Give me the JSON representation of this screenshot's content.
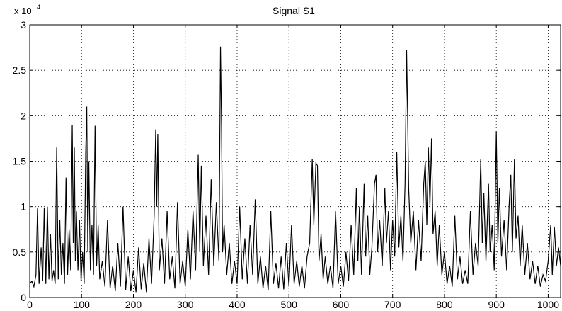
{
  "chart_data": {
    "type": "line",
    "title": "Signal S1",
    "xlabel": "",
    "ylabel": "",
    "y_multiplier_label": "x 10",
    "y_multiplier_exponent": "4",
    "xlim": [
      0,
      1024
    ],
    "ylim": [
      0,
      30000
    ],
    "xticks": [
      0,
      100,
      200,
      300,
      400,
      500,
      600,
      700,
      800,
      900,
      1000
    ],
    "xtick_labels": [
      "0",
      "100",
      "200",
      "300",
      "400",
      "500",
      "600",
      "700",
      "800",
      "900",
      "1000"
    ],
    "yticks": [
      0,
      5000,
      10000,
      15000,
      20000,
      25000,
      30000
    ],
    "ytick_labels": [
      "0",
      "0.5",
      "1",
      "1.5",
      "2",
      "2.5",
      "3"
    ],
    "grid": true,
    "line_color": "#000000",
    "series": [
      {
        "name": "",
        "points": [
          [
            0,
            1500
          ],
          [
            4,
            1800
          ],
          [
            8,
            1200
          ],
          [
            12,
            2500
          ],
          [
            15,
            9800
          ],
          [
            18,
            1500
          ],
          [
            22,
            5500
          ],
          [
            25,
            1800
          ],
          [
            28,
            9900
          ],
          [
            31,
            1500
          ],
          [
            34,
            10000
          ],
          [
            37,
            2000
          ],
          [
            40,
            7000
          ],
          [
            43,
            1800
          ],
          [
            46,
            3000
          ],
          [
            49,
            1500
          ],
          [
            52,
            16500
          ],
          [
            55,
            2000
          ],
          [
            58,
            8500
          ],
          [
            61,
            2500
          ],
          [
            64,
            6000
          ],
          [
            67,
            1500
          ],
          [
            70,
            13200
          ],
          [
            73,
            2500
          ],
          [
            76,
            7500
          ],
          [
            79,
            3000
          ],
          [
            82,
            19000
          ],
          [
            84,
            6000
          ],
          [
            86,
            16500
          ],
          [
            88,
            4000
          ],
          [
            90,
            9500
          ],
          [
            93,
            3000
          ],
          [
            96,
            8500
          ],
          [
            99,
            1800
          ],
          [
            102,
            5000
          ],
          [
            105,
            1500
          ],
          [
            108,
            16000
          ],
          [
            110,
            21000
          ],
          [
            112,
            5000
          ],
          [
            114,
            15000
          ],
          [
            117,
            3000
          ],
          [
            120,
            8000
          ],
          [
            123,
            2500
          ],
          [
            126,
            18900
          ],
          [
            129,
            3500
          ],
          [
            132,
            8000
          ],
          [
            135,
            2000
          ],
          [
            140,
            4000
          ],
          [
            145,
            1200
          ],
          [
            150,
            8500
          ],
          [
            155,
            1000
          ],
          [
            160,
            3500
          ],
          [
            165,
            700
          ],
          [
            170,
            6000
          ],
          [
            175,
            1200
          ],
          [
            180,
            10000
          ],
          [
            185,
            800
          ],
          [
            190,
            4500
          ],
          [
            195,
            700
          ],
          [
            200,
            3000
          ],
          [
            205,
            600
          ],
          [
            210,
            5500
          ],
          [
            215,
            900
          ],
          [
            220,
            3800
          ],
          [
            225,
            600
          ],
          [
            230,
            6500
          ],
          [
            235,
            1500
          ],
          [
            240,
            9000
          ],
          [
            243,
            18500
          ],
          [
            245,
            10000
          ],
          [
            247,
            18000
          ],
          [
            250,
            3000
          ],
          [
            255,
            6500
          ],
          [
            260,
            1500
          ],
          [
            265,
            9500
          ],
          [
            270,
            2000
          ],
          [
            275,
            4500
          ],
          [
            280,
            1000
          ],
          [
            285,
            10500
          ],
          [
            290,
            1500
          ],
          [
            295,
            4000
          ],
          [
            300,
            1200
          ],
          [
            305,
            7500
          ],
          [
            310,
            2000
          ],
          [
            315,
            9500
          ],
          [
            320,
            3000
          ],
          [
            325,
            15700
          ],
          [
            328,
            5000
          ],
          [
            331,
            14500
          ],
          [
            335,
            3500
          ],
          [
            340,
            9000
          ],
          [
            345,
            2500
          ],
          [
            350,
            13000
          ],
          [
            355,
            3500
          ],
          [
            360,
            10500
          ],
          [
            365,
            4000
          ],
          [
            368,
            27600
          ],
          [
            370,
            19000
          ],
          [
            372,
            5000
          ],
          [
            375,
            8000
          ],
          [
            380,
            2500
          ],
          [
            385,
            6000
          ],
          [
            390,
            1500
          ],
          [
            395,
            4000
          ],
          [
            400,
            1500
          ],
          [
            405,
            10000
          ],
          [
            410,
            2000
          ],
          [
            415,
            6500
          ],
          [
            420,
            1500
          ],
          [
            425,
            8000
          ],
          [
            430,
            2500
          ],
          [
            435,
            10800
          ],
          [
            440,
            1500
          ],
          [
            445,
            4500
          ],
          [
            450,
            1000
          ],
          [
            455,
            3500
          ],
          [
            460,
            800
          ],
          [
            465,
            9500
          ],
          [
            470,
            1500
          ],
          [
            475,
            3800
          ],
          [
            480,
            1000
          ],
          [
            485,
            4500
          ],
          [
            490,
            900
          ],
          [
            495,
            6000
          ],
          [
            500,
            1200
          ],
          [
            505,
            8000
          ],
          [
            510,
            1500
          ],
          [
            515,
            4000
          ],
          [
            520,
            1200
          ],
          [
            525,
            3500
          ],
          [
            530,
            1000
          ],
          [
            535,
            4500
          ],
          [
            540,
            6000
          ],
          [
            545,
            15200
          ],
          [
            548,
            8000
          ],
          [
            552,
            14800
          ],
          [
            555,
            14500
          ],
          [
            558,
            4000
          ],
          [
            562,
            7000
          ],
          [
            566,
            2000
          ],
          [
            570,
            4500
          ],
          [
            575,
            1500
          ],
          [
            580,
            3500
          ],
          [
            585,
            1000
          ],
          [
            590,
            9500
          ],
          [
            595,
            1500
          ],
          [
            600,
            3500
          ],
          [
            605,
            1200
          ],
          [
            610,
            5000
          ],
          [
            615,
            1800
          ],
          [
            620,
            8000
          ],
          [
            625,
            2500
          ],
          [
            630,
            12000
          ],
          [
            633,
            4000
          ],
          [
            636,
            10000
          ],
          [
            640,
            2500
          ],
          [
            645,
            12500
          ],
          [
            648,
            4500
          ],
          [
            652,
            9000
          ],
          [
            656,
            2500
          ],
          [
            660,
            5500
          ],
          [
            665,
            12500
          ],
          [
            668,
            13500
          ],
          [
            671,
            5000
          ],
          [
            675,
            8500
          ],
          [
            680,
            3500
          ],
          [
            685,
            12000
          ],
          [
            688,
            6000
          ],
          [
            692,
            9500
          ],
          [
            696,
            3000
          ],
          [
            700,
            8500
          ],
          [
            704,
            4500
          ],
          [
            708,
            16000
          ],
          [
            712,
            5500
          ],
          [
            716,
            9000
          ],
          [
            720,
            4000
          ],
          [
            724,
            12500
          ],
          [
            727,
            27200
          ],
          [
            729,
            20000
          ],
          [
            731,
            12000
          ],
          [
            735,
            6000
          ],
          [
            740,
            9500
          ],
          [
            745,
            3000
          ],
          [
            750,
            8500
          ],
          [
            755,
            4000
          ],
          [
            760,
            12500
          ],
          [
            763,
            15000
          ],
          [
            766,
            8000
          ],
          [
            769,
            16500
          ],
          [
            772,
            10000
          ],
          [
            775,
            17500
          ],
          [
            778,
            7000
          ],
          [
            782,
            9500
          ],
          [
            786,
            3500
          ],
          [
            790,
            8000
          ],
          [
            795,
            2500
          ],
          [
            800,
            5000
          ],
          [
            805,
            1500
          ],
          [
            810,
            3500
          ],
          [
            815,
            1200
          ],
          [
            820,
            9000
          ],
          [
            825,
            2000
          ],
          [
            830,
            4500
          ],
          [
            835,
            1500
          ],
          [
            840,
            3000
          ],
          [
            845,
            1500
          ],
          [
            850,
            9500
          ],
          [
            855,
            2500
          ],
          [
            860,
            6000
          ],
          [
            865,
            3500
          ],
          [
            870,
            15200
          ],
          [
            873,
            6000
          ],
          [
            876,
            11500
          ],
          [
            880,
            4000
          ],
          [
            885,
            12500
          ],
          [
            888,
            5000
          ],
          [
            892,
            8000
          ],
          [
            896,
            3000
          ],
          [
            900,
            18300
          ],
          [
            903,
            6000
          ],
          [
            906,
            12000
          ],
          [
            910,
            4500
          ],
          [
            915,
            8500
          ],
          [
            920,
            3000
          ],
          [
            925,
            10500
          ],
          [
            928,
            13500
          ],
          [
            931,
            5000
          ],
          [
            935,
            15200
          ],
          [
            938,
            6500
          ],
          [
            942,
            9000
          ],
          [
            946,
            3500
          ],
          [
            950,
            8000
          ],
          [
            955,
            2500
          ],
          [
            960,
            6000
          ],
          [
            965,
            2000
          ],
          [
            970,
            4000
          ],
          [
            975,
            1500
          ],
          [
            980,
            3500
          ],
          [
            985,
            1200
          ],
          [
            990,
            2500
          ],
          [
            995,
            1800
          ],
          [
            1000,
            4000
          ],
          [
            1005,
            8000
          ],
          [
            1008,
            2500
          ],
          [
            1012,
            7800
          ],
          [
            1016,
            3500
          ],
          [
            1020,
            5500
          ],
          [
            1024,
            3500
          ]
        ]
      }
    ]
  }
}
